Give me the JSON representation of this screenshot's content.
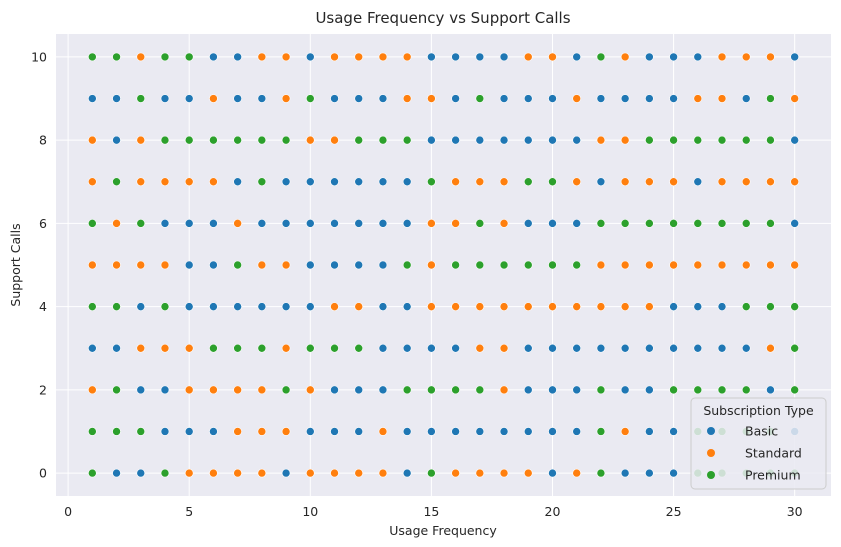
{
  "chart_data": {
    "type": "scatter",
    "title": "Usage Frequency vs Support Calls",
    "xlabel": "Usage Frequency",
    "ylabel": "Support Calls",
    "xlim": [
      -0.5,
      31.5
    ],
    "ylim": [
      -0.55,
      10.55
    ],
    "xticks": [
      0,
      5,
      10,
      15,
      20,
      25,
      30
    ],
    "yticks": [
      0,
      2,
      4,
      6,
      8,
      10
    ],
    "grid": true,
    "legend": {
      "title": "Subscription Type",
      "placement": "lower-right"
    },
    "colors": {
      "Basic": "#1f77b4",
      "Standard": "#ff7f0e",
      "Premium": "#2ca02c"
    },
    "series": [
      {
        "name": "Basic",
        "points": [
          [
            2,
            0
          ],
          [
            3,
            0
          ],
          [
            8,
            0
          ],
          [
            9,
            0
          ],
          [
            14,
            0
          ],
          [
            20,
            0
          ],
          [
            23,
            0
          ],
          [
            24,
            0
          ],
          [
            25,
            0
          ],
          [
            4,
            1
          ],
          [
            5,
            1
          ],
          [
            6,
            1
          ],
          [
            10,
            1
          ],
          [
            11,
            1
          ],
          [
            12,
            1
          ],
          [
            14,
            1
          ],
          [
            15,
            1
          ],
          [
            16,
            1
          ],
          [
            17,
            1
          ],
          [
            18,
            1
          ],
          [
            19,
            1
          ],
          [
            20,
            1
          ],
          [
            21,
            1
          ],
          [
            24,
            1
          ],
          [
            25,
            1
          ],
          [
            30,
            1
          ],
          [
            3,
            2
          ],
          [
            4,
            2
          ],
          [
            11,
            2
          ],
          [
            12,
            2
          ],
          [
            13,
            2
          ],
          [
            19,
            2
          ],
          [
            20,
            2
          ],
          [
            21,
            2
          ],
          [
            23,
            2
          ],
          [
            24,
            2
          ],
          [
            29,
            2
          ],
          [
            1,
            3
          ],
          [
            2,
            3
          ],
          [
            13,
            3
          ],
          [
            14,
            3
          ],
          [
            15,
            3
          ],
          [
            16,
            3
          ],
          [
            19,
            3
          ],
          [
            20,
            3
          ],
          [
            21,
            3
          ],
          [
            22,
            3
          ],
          [
            23,
            3
          ],
          [
            24,
            3
          ],
          [
            25,
            3
          ],
          [
            26,
            3
          ],
          [
            27,
            3
          ],
          [
            28,
            3
          ],
          [
            3,
            4
          ],
          [
            5,
            4
          ],
          [
            6,
            4
          ],
          [
            7,
            4
          ],
          [
            8,
            4
          ],
          [
            9,
            4
          ],
          [
            10,
            4
          ],
          [
            13,
            4
          ],
          [
            14,
            4
          ],
          [
            25,
            4
          ],
          [
            26,
            4
          ],
          [
            27,
            4
          ],
          [
            5,
            5
          ],
          [
            6,
            5
          ],
          [
            10,
            5
          ],
          [
            11,
            5
          ],
          [
            12,
            5
          ],
          [
            13,
            5
          ],
          [
            4,
            6
          ],
          [
            5,
            6
          ],
          [
            6,
            6
          ],
          [
            8,
            6
          ],
          [
            9,
            6
          ],
          [
            10,
            6
          ],
          [
            11,
            6
          ],
          [
            12,
            6
          ],
          [
            13,
            6
          ],
          [
            14,
            6
          ],
          [
            19,
            6
          ],
          [
            20,
            6
          ],
          [
            21,
            6
          ],
          [
            30,
            6
          ],
          [
            7,
            7
          ],
          [
            9,
            7
          ],
          [
            10,
            7
          ],
          [
            11,
            7
          ],
          [
            12,
            7
          ],
          [
            13,
            7
          ],
          [
            14,
            7
          ],
          [
            22,
            7
          ],
          [
            26,
            7
          ],
          [
            2,
            8
          ],
          [
            15,
            8
          ],
          [
            16,
            8
          ],
          [
            17,
            8
          ],
          [
            18,
            8
          ],
          [
            19,
            8
          ],
          [
            20,
            8
          ],
          [
            21,
            8
          ],
          [
            30,
            8
          ],
          [
            1,
            9
          ],
          [
            2,
            9
          ],
          [
            4,
            9
          ],
          [
            5,
            9
          ],
          [
            7,
            9
          ],
          [
            8,
            9
          ],
          [
            11,
            9
          ],
          [
            12,
            9
          ],
          [
            13,
            9
          ],
          [
            16,
            9
          ],
          [
            18,
            9
          ],
          [
            19,
            9
          ],
          [
            20,
            9
          ],
          [
            22,
            9
          ],
          [
            23,
            9
          ],
          [
            24,
            9
          ],
          [
            25,
            9
          ],
          [
            28,
            9
          ],
          [
            6,
            10
          ],
          [
            7,
            10
          ],
          [
            10,
            10
          ],
          [
            15,
            10
          ],
          [
            16,
            10
          ],
          [
            17,
            10
          ],
          [
            18,
            10
          ],
          [
            21,
            10
          ],
          [
            24,
            10
          ],
          [
            25,
            10
          ],
          [
            26,
            10
          ],
          [
            30,
            10
          ]
        ]
      },
      {
        "name": "Standard",
        "points": [
          [
            5,
            0
          ],
          [
            6,
            0
          ],
          [
            7,
            0
          ],
          [
            8,
            0
          ],
          [
            10,
            0
          ],
          [
            11,
            0
          ],
          [
            12,
            0
          ],
          [
            13,
            0
          ],
          [
            16,
            0
          ],
          [
            17,
            0
          ],
          [
            18,
            0
          ],
          [
            19,
            0
          ],
          [
            21,
            0
          ],
          [
            7,
            1
          ],
          [
            8,
            1
          ],
          [
            9,
            1
          ],
          [
            13,
            1
          ],
          [
            23,
            1
          ],
          [
            1,
            2
          ],
          [
            5,
            2
          ],
          [
            6,
            2
          ],
          [
            7,
            2
          ],
          [
            8,
            2
          ],
          [
            10,
            2
          ],
          [
            18,
            2
          ],
          [
            3,
            3
          ],
          [
            4,
            3
          ],
          [
            5,
            3
          ],
          [
            9,
            3
          ],
          [
            17,
            3
          ],
          [
            18,
            3
          ],
          [
            29,
            3
          ],
          [
            11,
            4
          ],
          [
            12,
            4
          ],
          [
            15,
            4
          ],
          [
            16,
            4
          ],
          [
            17,
            4
          ],
          [
            18,
            4
          ],
          [
            19,
            4
          ],
          [
            20,
            4
          ],
          [
            21,
            4
          ],
          [
            22,
            4
          ],
          [
            23,
            4
          ],
          [
            24,
            4
          ],
          [
            1,
            5
          ],
          [
            2,
            5
          ],
          [
            3,
            5
          ],
          [
            4,
            5
          ],
          [
            8,
            5
          ],
          [
            9,
            5
          ],
          [
            15,
            5
          ],
          [
            22,
            5
          ],
          [
            23,
            5
          ],
          [
            24,
            5
          ],
          [
            25,
            5
          ],
          [
            26,
            5
          ],
          [
            27,
            5
          ],
          [
            28,
            5
          ],
          [
            29,
            5
          ],
          [
            30,
            5
          ],
          [
            2,
            6
          ],
          [
            7,
            6
          ],
          [
            15,
            6
          ],
          [
            16,
            6
          ],
          [
            18,
            6
          ],
          [
            1,
            7
          ],
          [
            3,
            7
          ],
          [
            4,
            7
          ],
          [
            5,
            7
          ],
          [
            6,
            7
          ],
          [
            16,
            7
          ],
          [
            17,
            7
          ],
          [
            18,
            7
          ],
          [
            21,
            7
          ],
          [
            23,
            7
          ],
          [
            24,
            7
          ],
          [
            25,
            7
          ],
          [
            27,
            7
          ],
          [
            28,
            7
          ],
          [
            29,
            7
          ],
          [
            30,
            7
          ],
          [
            1,
            8
          ],
          [
            3,
            8
          ],
          [
            10,
            8
          ],
          [
            11,
            8
          ],
          [
            22,
            8
          ],
          [
            23,
            8
          ],
          [
            6,
            9
          ],
          [
            9,
            9
          ],
          [
            14,
            9
          ],
          [
            15,
            9
          ],
          [
            21,
            9
          ],
          [
            26,
            9
          ],
          [
            27,
            9
          ],
          [
            30,
            9
          ],
          [
            3,
            10
          ],
          [
            8,
            10
          ],
          [
            9,
            10
          ],
          [
            11,
            10
          ],
          [
            12,
            10
          ],
          [
            13,
            10
          ],
          [
            14,
            10
          ],
          [
            19,
            10
          ],
          [
            20,
            10
          ],
          [
            23,
            10
          ],
          [
            27,
            10
          ],
          [
            28,
            10
          ],
          [
            29,
            10
          ]
        ]
      },
      {
        "name": "Premium",
        "points": [
          [
            1,
            0
          ],
          [
            4,
            0
          ],
          [
            15,
            0
          ],
          [
            22,
            0
          ],
          [
            26,
            0
          ],
          [
            27,
            0
          ],
          [
            28,
            0
          ],
          [
            29,
            0
          ],
          [
            30,
            0
          ],
          [
            1,
            1
          ],
          [
            2,
            1
          ],
          [
            3,
            1
          ],
          [
            22,
            1
          ],
          [
            26,
            1
          ],
          [
            27,
            1
          ],
          [
            28,
            1
          ],
          [
            29,
            1
          ],
          [
            2,
            2
          ],
          [
            9,
            2
          ],
          [
            14,
            2
          ],
          [
            15,
            2
          ],
          [
            16,
            2
          ],
          [
            17,
            2
          ],
          [
            22,
            2
          ],
          [
            25,
            2
          ],
          [
            26,
            2
          ],
          [
            27,
            2
          ],
          [
            28,
            2
          ],
          [
            30,
            2
          ],
          [
            6,
            3
          ],
          [
            7,
            3
          ],
          [
            8,
            3
          ],
          [
            10,
            3
          ],
          [
            11,
            3
          ],
          [
            12,
            3
          ],
          [
            30,
            3
          ],
          [
            1,
            4
          ],
          [
            2,
            4
          ],
          [
            4,
            4
          ],
          [
            28,
            4
          ],
          [
            29,
            4
          ],
          [
            30,
            4
          ],
          [
            7,
            5
          ],
          [
            14,
            5
          ],
          [
            16,
            5
          ],
          [
            17,
            5
          ],
          [
            18,
            5
          ],
          [
            19,
            5
          ],
          [
            20,
            5
          ],
          [
            21,
            5
          ],
          [
            1,
            6
          ],
          [
            3,
            6
          ],
          [
            17,
            6
          ],
          [
            22,
            6
          ],
          [
            23,
            6
          ],
          [
            24,
            6
          ],
          [
            25,
            6
          ],
          [
            26,
            6
          ],
          [
            27,
            6
          ],
          [
            28,
            6
          ],
          [
            29,
            6
          ],
          [
            2,
            7
          ],
          [
            8,
            7
          ],
          [
            15,
            7
          ],
          [
            19,
            7
          ],
          [
            20,
            7
          ],
          [
            4,
            8
          ],
          [
            5,
            8
          ],
          [
            6,
            8
          ],
          [
            7,
            8
          ],
          [
            8,
            8
          ],
          [
            9,
            8
          ],
          [
            12,
            8
          ],
          [
            13,
            8
          ],
          [
            14,
            8
          ],
          [
            24,
            8
          ],
          [
            25,
            8
          ],
          [
            26,
            8
          ],
          [
            27,
            8
          ],
          [
            28,
            8
          ],
          [
            29,
            8
          ],
          [
            3,
            9
          ],
          [
            10,
            9
          ],
          [
            17,
            9
          ],
          [
            29,
            9
          ],
          [
            1,
            10
          ],
          [
            2,
            10
          ],
          [
            4,
            10
          ],
          [
            5,
            10
          ],
          [
            22,
            10
          ]
        ]
      }
    ]
  }
}
